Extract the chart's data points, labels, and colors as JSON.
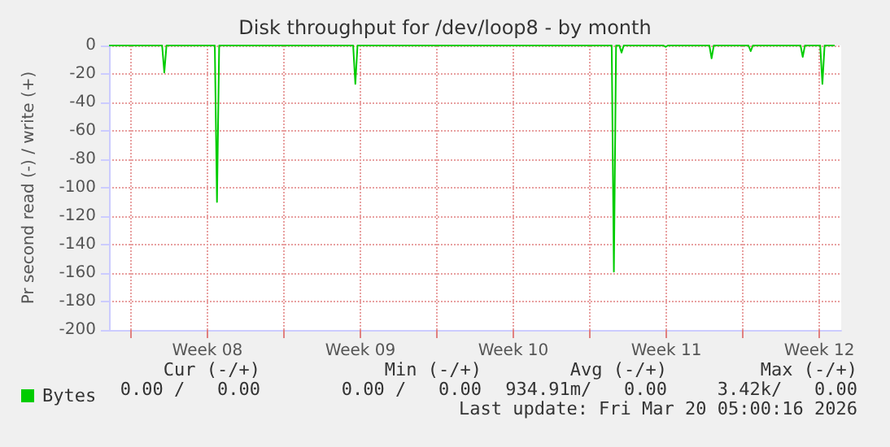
{
  "chart_data": {
    "type": "line",
    "title": "Disk throughput for /dev/loop8 - by month",
    "ylabel": "Pr second read (-) / write (+)",
    "x": [
      "2026-02-15T00:00",
      "2026-02-17T10:19",
      "2026-02-17T12:43",
      "2026-02-17T15:07",
      "2026-02-19T20:10",
      "2026-02-19T22:34",
      "2026-02-20T00:58",
      "2026-02-26T04:05",
      "2026-02-26T06:29",
      "2026-02-26T08:53",
      "2026-03-10T00:00",
      "2026-03-10T02:24",
      "2026-03-10T04:48",
      "2026-03-10T08:24",
      "2026-03-10T10:48",
      "2026-03-10T13:12",
      "2026-03-12T08:53",
      "2026-03-12T11:17",
      "2026-03-12T13:41",
      "2026-03-14T11:17",
      "2026-03-14T13:41",
      "2026-03-14T16:05",
      "2026-03-16T06:14",
      "2026-03-16T08:38",
      "2026-03-16T11:02",
      "2026-03-18T15:22",
      "2026-03-18T17:46",
      "2026-03-18T20:10",
      "2026-03-19T12:58",
      "2026-03-19T15:22",
      "2026-03-19T17:46",
      "2026-03-20T04:48"
    ],
    "series": [
      {
        "name": "Bytes",
        "color": "#00cc00",
        "values": [
          0,
          0,
          -19,
          0,
          0,
          -110,
          0,
          0,
          -27,
          0,
          0,
          -159,
          0,
          0,
          -5,
          0,
          0,
          -1,
          0,
          0,
          -9,
          0,
          0,
          -4,
          0,
          0,
          -8,
          0,
          0,
          -27,
          0,
          0
        ]
      }
    ],
    "xlim": [
      "2026-02-15T00:00",
      "2026-03-20T12:00"
    ],
    "xticks": [
      {
        "value": "2026-02-16T00:00",
        "label": null
      },
      {
        "value": "2026-02-19T12:00",
        "label": "Week 08"
      },
      {
        "value": "2026-02-23T00:00",
        "label": null
      },
      {
        "value": "2026-02-26T12:00",
        "label": "Week 09"
      },
      {
        "value": "2026-03-02T00:00",
        "label": null
      },
      {
        "value": "2026-03-05T12:00",
        "label": "Week 10"
      },
      {
        "value": "2026-03-09T00:00",
        "label": null
      },
      {
        "value": "2026-03-12T12:00",
        "label": "Week 11"
      },
      {
        "value": "2026-03-16T00:00",
        "label": null
      },
      {
        "value": "2026-03-19T12:00",
        "label": "Week 12"
      }
    ],
    "ylim": [
      -200,
      0
    ],
    "yticks": [
      -200,
      -180,
      -160,
      -140,
      -120,
      -100,
      -80,
      -60,
      -40,
      -20,
      0
    ],
    "grid": true,
    "legend": "bottom left",
    "marker": "none",
    "line_style": "solid",
    "annotations": [
      "Cur (-/+)",
      "Min (-/+)",
      "Avg (-/+)",
      "Max (-/+)",
      "0.00 /   0.00",
      "0.00 /   0.00",
      "934.91m/   0.00",
      "3.42k/   0.00",
      "Last update: Fri Mar 20 05:00:16 2026"
    ]
  }
}
